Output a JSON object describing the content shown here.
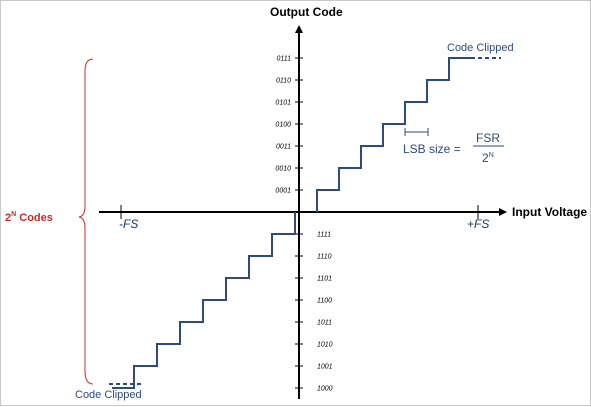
{
  "labels": {
    "output_axis": "Output Code",
    "input_axis": "Input Voltage",
    "neg_fs": "-FS",
    "pos_fs": "+FS",
    "clipped_top": "Code Clipped",
    "clipped_bottom": "Code Clipped",
    "lsb_text": "LSB size =",
    "lsb_numerator": "FSR",
    "lsb_denominator_base": "2",
    "lsb_denominator_exp": "N",
    "codes_base": "2",
    "codes_exp": "N",
    "codes_text": " Codes"
  },
  "codes_positive": [
    "0001",
    "0010",
    "0011",
    "0100",
    "0101",
    "0110",
    "0111"
  ],
  "codes_negative": [
    "1111",
    "1110",
    "1101",
    "1100",
    "1011",
    "1010",
    "1001",
    "1000"
  ],
  "colors": {
    "staircase": "#2e4a86",
    "axis": "#000000",
    "brace": "#d02828",
    "text_blue": "#2e4a86"
  }
}
